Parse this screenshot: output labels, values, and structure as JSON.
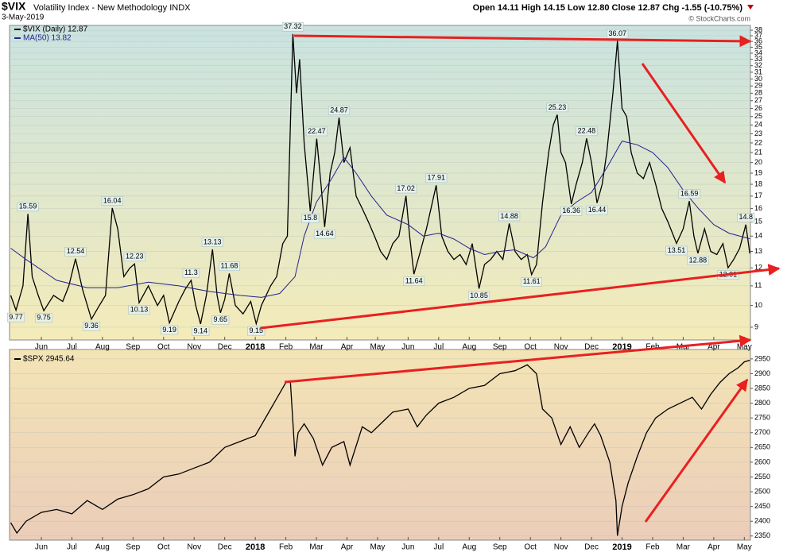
{
  "header": {
    "symbol": "$VIX",
    "title": "Volatility Index - New Methodology INDX",
    "date": "3-May-2019",
    "quote": "Open 14.11  High 14.15  Low 12.80  Close 12.87  Chg -1.55 (-10.75%)",
    "credit": "© StockCharts.com"
  },
  "chart_data": [
    {
      "type": "line",
      "log": true,
      "grid": true,
      "xlim": [
        -1.04,
        23.2
      ],
      "xticks": [
        {
          "value": 0,
          "label": "Jun"
        },
        {
          "value": 1,
          "label": "Jul"
        },
        {
          "value": 2,
          "label": "Aug"
        },
        {
          "value": 3,
          "label": "Sep"
        },
        {
          "value": 4,
          "label": "Oct"
        },
        {
          "value": 5,
          "label": "Nov"
        },
        {
          "value": 6,
          "label": "Dec"
        },
        {
          "value": 7,
          "label": "2018"
        },
        {
          "value": 8,
          "label": "Feb"
        },
        {
          "value": 9,
          "label": "Mar"
        },
        {
          "value": 10,
          "label": "Apr"
        },
        {
          "value": 11,
          "label": "May"
        },
        {
          "value": 12,
          "label": "Jun"
        },
        {
          "value": 13,
          "label": "Jul"
        },
        {
          "value": 14,
          "label": "Aug"
        },
        {
          "value": 15,
          "label": "Sep"
        },
        {
          "value": 16,
          "label": "Oct"
        },
        {
          "value": 17,
          "label": "Nov"
        },
        {
          "value": 18,
          "label": "Dec"
        },
        {
          "value": 19,
          "label": "2019"
        },
        {
          "value": 20,
          "label": "Feb"
        },
        {
          "value": 21,
          "label": "Mar"
        },
        {
          "value": 22,
          "label": "Apr"
        },
        {
          "value": 23,
          "label": "May"
        }
      ],
      "ylim": [
        8.46,
        38.9
      ],
      "yticks": [
        9,
        10,
        11,
        12,
        13,
        14,
        15,
        16,
        17,
        18,
        19,
        20,
        21,
        22,
        23,
        24,
        25,
        26,
        27,
        28,
        29,
        30,
        31,
        32,
        33,
        34,
        35,
        36,
        37,
        38
      ],
      "series": [
        {
          "name": "$VIX (Daily) 12.87",
          "color": "#000000",
          "x": [
            -1.0,
            -0.83,
            -0.6,
            -0.44,
            -0.3,
            -0.1,
            0.08,
            0.4,
            0.7,
            0.9,
            1.12,
            1.35,
            1.64,
            1.9,
            2.1,
            2.32,
            2.5,
            2.7,
            2.9,
            3.05,
            3.2,
            3.5,
            3.8,
            4.0,
            4.19,
            4.5,
            4.7,
            4.9,
            5.05,
            5.21,
            5.4,
            5.6,
            5.75,
            5.86,
            6.0,
            6.15,
            6.35,
            6.6,
            6.85,
            7.03,
            7.2,
            7.5,
            7.7,
            7.9,
            8.05,
            8.23,
            8.35,
            8.45,
            8.6,
            8.8,
            9.01,
            9.15,
            9.27,
            9.45,
            9.6,
            9.74,
            9.9,
            10.1,
            10.3,
            10.5,
            10.7,
            10.9,
            11.1,
            11.3,
            11.5,
            11.7,
            11.93,
            12.05,
            12.19,
            12.4,
            12.6,
            12.92,
            13.1,
            13.3,
            13.5,
            13.7,
            13.9,
            14.1,
            14.32,
            14.5,
            14.7,
            14.9,
            15.1,
            15.31,
            15.5,
            15.7,
            15.9,
            16.04,
            16.2,
            16.4,
            16.6,
            16.75,
            16.88,
            17.0,
            17.15,
            17.34,
            17.5,
            17.7,
            17.84,
            18.0,
            18.18,
            18.35,
            18.5,
            18.7,
            18.85,
            19.0,
            19.15,
            19.3,
            19.5,
            19.7,
            19.9,
            20.1,
            20.3,
            20.5,
            20.78,
            21.0,
            21.2,
            21.35,
            21.48,
            21.7,
            21.9,
            22.1,
            22.3,
            22.47,
            22.65,
            22.85,
            23.05,
            23.18
          ],
          "values": [
            10.5,
            9.77,
            11,
            15.59,
            11.5,
            10.5,
            9.75,
            10.5,
            10.2,
            11.0,
            12.54,
            10.8,
            9.36,
            10.0,
            10.5,
            16.04,
            14.5,
            11.5,
            12.0,
            12.23,
            10.13,
            11.0,
            10.0,
            10.5,
            9.19,
            10.2,
            10.8,
            11.3,
            10.0,
            9.14,
            10.5,
            13.13,
            10.5,
            9.65,
            10.3,
            11.68,
            10.0,
            9.6,
            10.2,
            9.15,
            10.0,
            11.0,
            11.5,
            13.5,
            14.0,
            37.32,
            28,
            33,
            22,
            15.8,
            22.47,
            18,
            14.64,
            19,
            21,
            24.87,
            20,
            21.5,
            17,
            16,
            15,
            14,
            13,
            12.5,
            13.5,
            14,
            17.02,
            14,
            11.64,
            13,
            14.5,
            17.91,
            14,
            13,
            12.5,
            12.8,
            12.2,
            13.5,
            10.85,
            12.2,
            12.5,
            13.0,
            12.5,
            14.88,
            13.0,
            12.5,
            12.8,
            11.61,
            12.2,
            16.5,
            21,
            24,
            25.23,
            21,
            20,
            16.36,
            18,
            20,
            22.48,
            20,
            16.44,
            18,
            21,
            28,
            36.07,
            26,
            25,
            21,
            19,
            18.5,
            20,
            18,
            16,
            15,
            13.51,
            14.5,
            16.59,
            14,
            12.88,
            14.5,
            13,
            12.8,
            13.5,
            12.01,
            12.5,
            13.2,
            14.8,
            12.87
          ]
        },
        {
          "name": "MA(50) 13.82",
          "color": "#23238e",
          "x": [
            -1.0,
            -0.5,
            0.5,
            1.5,
            2.5,
            3.5,
            4.5,
            5.5,
            6.5,
            7.2,
            7.8,
            8.3,
            8.6,
            9.0,
            9.5,
            9.9,
            10.3,
            10.8,
            11.3,
            12.0,
            12.5,
            13.0,
            13.5,
            14.0,
            14.5,
            15.0,
            15.5,
            16.1,
            16.5,
            17.0,
            17.5,
            18.0,
            18.5,
            19.0,
            19.5,
            20.0,
            20.5,
            21.0,
            21.5,
            22.0,
            22.5,
            23.18
          ],
          "values": [
            13.2,
            12.5,
            11.3,
            10.9,
            10.9,
            11.2,
            11.0,
            10.7,
            10.5,
            10.4,
            10.6,
            11.5,
            14,
            16.5,
            18.5,
            20.5,
            19,
            17,
            15.5,
            14.8,
            14.0,
            14.2,
            13.8,
            13.2,
            12.8,
            13.0,
            13.1,
            12.6,
            13.3,
            15.5,
            16.5,
            17.3,
            19.5,
            22.2,
            21.8,
            21.0,
            19.5,
            17.5,
            16.0,
            14.8,
            14.2,
            13.82
          ]
        }
      ],
      "peaks": [
        {
          "x": -0.44,
          "value": 15.59
        },
        {
          "x": 1.12,
          "value": 12.54
        },
        {
          "x": 2.32,
          "value": 16.04
        },
        {
          "x": 3.05,
          "value": 12.23
        },
        {
          "x": 4.9,
          "value": 11.3
        },
        {
          "x": 5.6,
          "value": 13.13
        },
        {
          "x": 6.15,
          "value": 11.68
        },
        {
          "x": 8.23,
          "value": 37.32
        },
        {
          "x": 9.01,
          "value": 22.47
        },
        {
          "x": 9.74,
          "value": 24.87
        },
        {
          "x": 11.93,
          "value": 17.02
        },
        {
          "x": 12.92,
          "value": 17.91
        },
        {
          "x": 15.31,
          "value": 14.88
        },
        {
          "x": 16.88,
          "value": 25.23
        },
        {
          "x": 17.84,
          "value": 22.48
        },
        {
          "x": 18.85,
          "value": 36.07
        },
        {
          "x": 21.2,
          "value": 16.59
        },
        {
          "x": 23.05,
          "value": 14.8
        }
      ],
      "troughs": [
        {
          "x": -0.83,
          "value": 9.77
        },
        {
          "x": 0.08,
          "value": 9.75
        },
        {
          "x": 1.64,
          "value": 9.36
        },
        {
          "x": 3.2,
          "value": 10.13
        },
        {
          "x": 4.19,
          "value": 9.19
        },
        {
          "x": 5.21,
          "value": 9.14
        },
        {
          "x": 5.86,
          "value": 9.65
        },
        {
          "x": 7.03,
          "value": 9.15
        },
        {
          "x": 8.8,
          "value": 15.8
        },
        {
          "x": 9.27,
          "value": 14.64
        },
        {
          "x": 12.19,
          "value": 11.64
        },
        {
          "x": 14.32,
          "value": 10.85
        },
        {
          "x": 16.04,
          "value": 11.61
        },
        {
          "x": 17.34,
          "value": 16.36
        },
        {
          "x": 18.18,
          "value": 16.44
        },
        {
          "x": 20.78,
          "value": 13.51
        },
        {
          "x": 21.48,
          "value": 12.88
        },
        {
          "x": 22.47,
          "value": 12.01
        }
      ]
    },
    {
      "type": "line",
      "log": false,
      "grid": true,
      "xlim": [
        -1.04,
        23.2
      ],
      "xticks": [
        {
          "value": 0,
          "label": "Jun"
        },
        {
          "value": 1,
          "label": "Jul"
        },
        {
          "value": 2,
          "label": "Aug"
        },
        {
          "value": 3,
          "label": "Sep"
        },
        {
          "value": 4,
          "label": "Oct"
        },
        {
          "value": 5,
          "label": "Nov"
        },
        {
          "value": 6,
          "label": "Dec"
        },
        {
          "value": 7,
          "label": "2018"
        },
        {
          "value": 8,
          "label": "Feb"
        },
        {
          "value": 9,
          "label": "Mar"
        },
        {
          "value": 10,
          "label": "Apr"
        },
        {
          "value": 11,
          "label": "May"
        },
        {
          "value": 12,
          "label": "Jun"
        },
        {
          "value": 13,
          "label": "Jul"
        },
        {
          "value": 14,
          "label": "Aug"
        },
        {
          "value": 15,
          "label": "Sep"
        },
        {
          "value": 16,
          "label": "Oct"
        },
        {
          "value": 17,
          "label": "Nov"
        },
        {
          "value": 18,
          "label": "Dec"
        },
        {
          "value": 19,
          "label": "2019"
        },
        {
          "value": 20,
          "label": "Feb"
        },
        {
          "value": 21,
          "label": "Mar"
        },
        {
          "value": 22,
          "label": "Apr"
        },
        {
          "value": 23,
          "label": "May"
        }
      ],
      "ylim": [
        2336,
        2982
      ],
      "yticks": [
        2350,
        2400,
        2450,
        2500,
        2550,
        2600,
        2650,
        2700,
        2750,
        2800,
        2850,
        2900,
        2950
      ],
      "series": [
        {
          "name": "$SPX 2945.64",
          "color": "#000000",
          "x": [
            -1.0,
            -0.8,
            -0.5,
            0,
            0.5,
            1,
            1.5,
            2,
            2.5,
            3,
            3.5,
            4,
            4.5,
            5,
            5.5,
            6,
            6.5,
            7,
            7.5,
            8.0,
            8.15,
            8.3,
            8.4,
            8.6,
            8.9,
            9.2,
            9.5,
            9.9,
            10.1,
            10.5,
            10.8,
            11.1,
            11.5,
            12.0,
            12.3,
            12.6,
            13.0,
            13.5,
            14.0,
            14.5,
            15.0,
            15.5,
            15.9,
            16.2,
            16.4,
            16.7,
            17.0,
            17.3,
            17.6,
            17.9,
            18.1,
            18.3,
            18.6,
            18.8,
            18.85,
            19.0,
            19.2,
            19.5,
            19.8,
            20.1,
            20.5,
            20.9,
            21.3,
            21.6,
            21.9,
            22.2,
            22.5,
            22.8,
            23.0,
            23.18
          ],
          "values": [
            2395,
            2360,
            2400,
            2430,
            2440,
            2425,
            2470,
            2440,
            2475,
            2490,
            2510,
            2550,
            2560,
            2580,
            2600,
            2650,
            2670,
            2690,
            2780,
            2870,
            2873,
            2620,
            2700,
            2730,
            2680,
            2590,
            2650,
            2670,
            2590,
            2720,
            2700,
            2730,
            2770,
            2780,
            2720,
            2760,
            2800,
            2820,
            2850,
            2860,
            2900,
            2910,
            2930,
            2900,
            2780,
            2750,
            2660,
            2720,
            2650,
            2700,
            2730,
            2690,
            2600,
            2470,
            2351,
            2450,
            2530,
            2620,
            2700,
            2750,
            2780,
            2800,
            2820,
            2780,
            2830,
            2870,
            2900,
            2920,
            2940,
            2945.64
          ]
        }
      ]
    }
  ]
}
